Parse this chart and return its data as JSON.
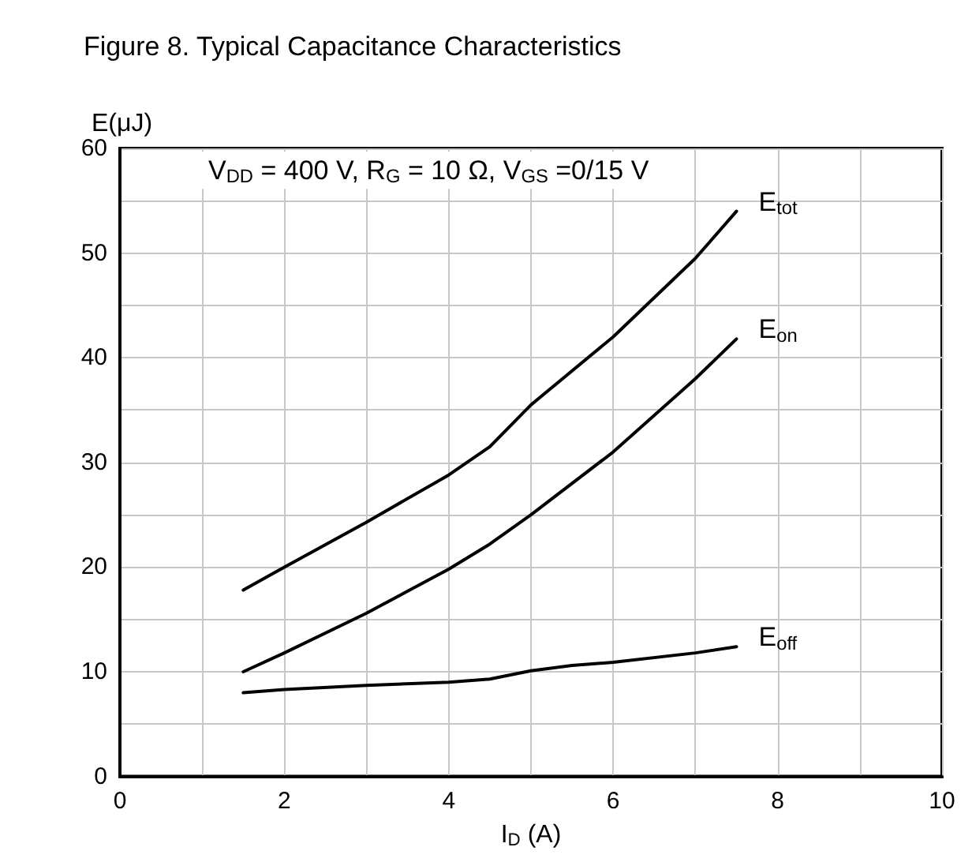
{
  "chart_data": {
    "type": "line",
    "title": "Figure 8. Typical Capacitance Characteristics",
    "xlabel": "I$_{D}$ (A)",
    "ylabel": "E(μJ)",
    "annotations": [
      "V$_{DD}$ = 400 V, R$_{G}$ = 10 Ω, V$_{GS}$ =0/15 V"
    ],
    "xlim": [
      0,
      10
    ],
    "xticks": [
      0,
      {
        "value": 1,
        "label": null
      },
      2,
      {
        "value": 3,
        "label": null
      },
      4,
      {
        "value": 5,
        "label": null
      },
      6,
      {
        "value": 7,
        "label": null
      },
      8,
      {
        "value": 9,
        "label": null
      },
      10
    ],
    "ylim": [
      0,
      60
    ],
    "yticks": [
      0,
      {
        "value": 5,
        "label": null
      },
      10,
      {
        "value": 15,
        "label": null
      },
      20,
      {
        "value": 25,
        "label": null
      },
      30,
      {
        "value": 35,
        "label": null
      },
      40,
      {
        "value": 45,
        "label": null
      },
      50,
      {
        "value": 55,
        "label": null
      },
      60
    ],
    "grid": true,
    "marker": "none",
    "line_style": "solid",
    "series": [
      {
        "name": "E$_{tot}$",
        "color": "#000000",
        "x": [
          1.5,
          2,
          3,
          4,
          4.5,
          5,
          6,
          7,
          7.5
        ],
        "values": [
          17.8,
          20,
          24.3,
          28.8,
          31.5,
          35.5,
          42,
          49.5,
          54
        ]
      },
      {
        "name": "E$_{on}$",
        "color": "#000000",
        "x": [
          1.5,
          2,
          3,
          4,
          4.5,
          5,
          6,
          7,
          7.5
        ],
        "values": [
          10,
          11.8,
          15.6,
          19.8,
          22.2,
          25,
          31,
          38,
          41.8
        ]
      },
      {
        "name": "E$_{off}$",
        "color": "#000000",
        "x": [
          1.5,
          2,
          3,
          4,
          4.5,
          5,
          5.5,
          6,
          7,
          7.5
        ],
        "values": [
          8,
          8.3,
          8.7,
          9,
          9.3,
          10.1,
          10.6,
          10.9,
          11.8,
          12.4
        ]
      }
    ]
  }
}
